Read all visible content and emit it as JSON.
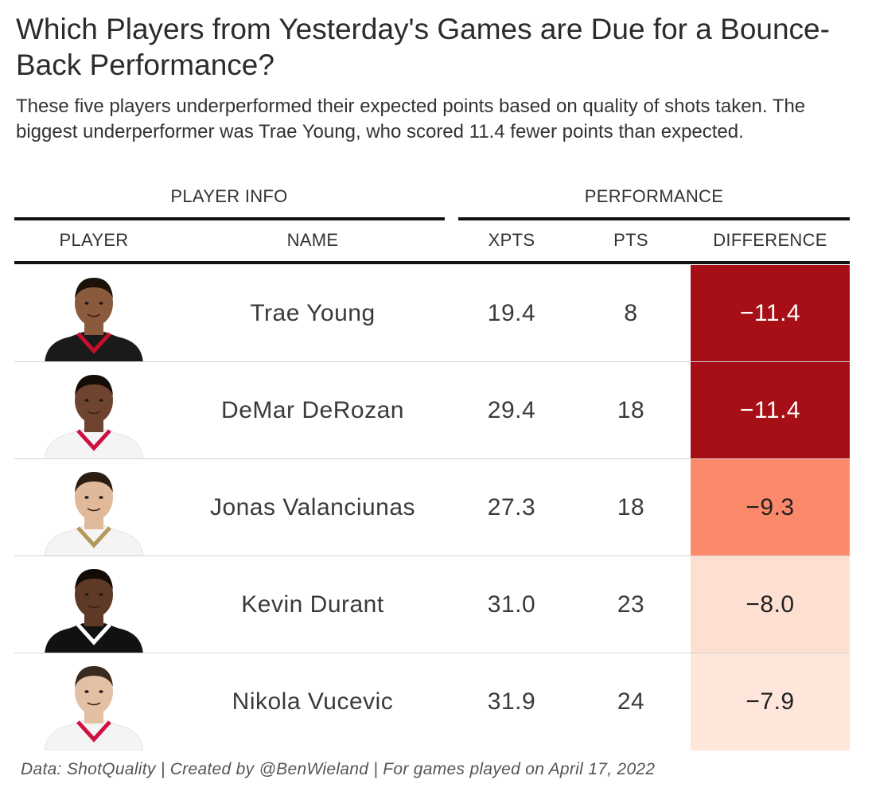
{
  "title": "Which Players from Yesterday's Games are Due for a Bounce-Back Performance?",
  "subtitle": "These five players underperformed their expected points based on quality of shots taken. The biggest underperformer was Trae Young, who scored 11.4 fewer points than expected.",
  "groups": {
    "player_info": "PLAYER INFO",
    "performance": "PERFORMANCE"
  },
  "columns": {
    "player": "PLAYER",
    "name": "NAME",
    "xpts": "XPTS",
    "pts": "PTS",
    "difference": "DIFFERENCE"
  },
  "caption": "Data: ShotQuality | Created by @BenWieland | For games played on April 17, 2022",
  "colors": {
    "diff_strong": "#a50f15",
    "diff_mid": "#fc8a6a",
    "diff_light": "#fee0d2",
    "diff_lighter": "#fee6da",
    "rule": "#111111"
  },
  "chart_data": {
    "type": "table",
    "title": "Which Players from Yesterday's Games are Due for a Bounce-Back Performance?",
    "columns": [
      "PLAYER",
      "NAME",
      "XPTS",
      "PTS",
      "DIFFERENCE"
    ],
    "rows": [
      {
        "name": "Trae Young",
        "xpts": "19.4",
        "pts": "8",
        "difference": "−11.4",
        "diff_value": -11.4,
        "jersey": "#1a1a1a",
        "trim": "#c8102e",
        "skin": "#8a5a3c",
        "hair": "#1c1208"
      },
      {
        "name": "DeMar DeRozan",
        "xpts": "29.4",
        "pts": "18",
        "difference": "−11.4",
        "diff_value": -11.4,
        "jersey": "#f4f4f4",
        "trim": "#ce1141",
        "skin": "#6e4430",
        "hair": "#140c06"
      },
      {
        "name": "Jonas Valanciunas",
        "xpts": "27.3",
        "pts": "18",
        "difference": "−9.3",
        "diff_value": -9.3,
        "jersey": "#f4f4f4",
        "trim": "#b4975a",
        "skin": "#e0b89a",
        "hair": "#2a1e14"
      },
      {
        "name": "Kevin Durant",
        "xpts": "31.0",
        "pts": "23",
        "difference": "−8.0",
        "diff_value": -8.0,
        "jersey": "#111111",
        "trim": "#ffffff",
        "skin": "#5e3a26",
        "hair": "#120a05"
      },
      {
        "name": "Nikola Vucevic",
        "xpts": "31.9",
        "pts": "24",
        "difference": "−7.9",
        "diff_value": -7.9,
        "jersey": "#f4f4f4",
        "trim": "#ce1141",
        "skin": "#e3bfa4",
        "hair": "#3a2a1e"
      }
    ]
  }
}
